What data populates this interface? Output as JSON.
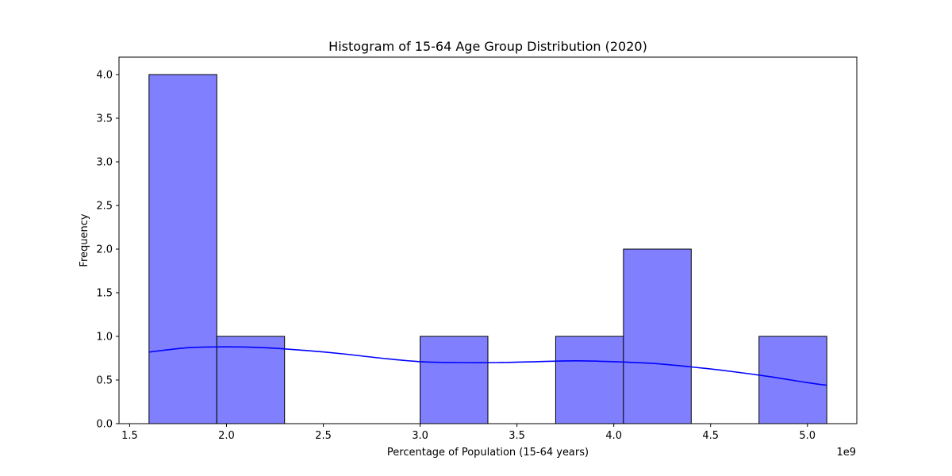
{
  "chart_data": {
    "type": "bar",
    "subtype": "histogram",
    "title": "Histogram of 15-64 Age Group Distribution (2020)",
    "xlabel": "Percentage of Population (15-64 years)",
    "ylabel": "Frequency",
    "x_offset_text": "1e9",
    "x_scale_factor": 1000000000,
    "xlim": [
      1.445,
      5.255
    ],
    "ylim": [
      0,
      4.2
    ],
    "x_ticks": [
      1.5,
      2.0,
      2.5,
      3.0,
      3.5,
      4.0,
      4.5,
      5.0
    ],
    "x_tick_labels": [
      "1.5",
      "2.0",
      "2.5",
      "3.0",
      "3.5",
      "4.0",
      "4.5",
      "5.0"
    ],
    "y_ticks": [
      0,
      0.5,
      1.0,
      1.5,
      2.0,
      2.5,
      3.0,
      3.5,
      4.0
    ],
    "y_tick_labels": [
      "0.0",
      "0.5",
      "1.0",
      "1.5",
      "2.0",
      "2.5",
      "3.0",
      "3.5",
      "4.0"
    ],
    "bins": [
      {
        "x0": 1.6,
        "x1": 1.95,
        "count": 4
      },
      {
        "x0": 1.95,
        "x1": 2.3,
        "count": 1
      },
      {
        "x0": 2.3,
        "x1": 2.65,
        "count": 0
      },
      {
        "x0": 2.65,
        "x1": 3.0,
        "count": 0
      },
      {
        "x0": 3.0,
        "x1": 3.35,
        "count": 1
      },
      {
        "x0": 3.35,
        "x1": 3.7,
        "count": 0
      },
      {
        "x0": 3.7,
        "x1": 4.05,
        "count": 1
      },
      {
        "x0": 4.05,
        "x1": 4.4,
        "count": 2
      },
      {
        "x0": 4.4,
        "x1": 4.75,
        "count": 0
      },
      {
        "x0": 4.75,
        "x1": 5.1,
        "count": 1
      }
    ],
    "kde": {
      "x": [
        1.6,
        1.8,
        2.0,
        2.2,
        2.4,
        2.6,
        2.8,
        3.0,
        3.2,
        3.4,
        3.6,
        3.8,
        4.0,
        4.2,
        4.4,
        4.6,
        4.8,
        5.0,
        5.1
      ],
      "y": [
        0.82,
        0.87,
        0.88,
        0.87,
        0.84,
        0.8,
        0.75,
        0.71,
        0.7,
        0.7,
        0.71,
        0.72,
        0.71,
        0.69,
        0.65,
        0.6,
        0.54,
        0.47,
        0.44
      ]
    },
    "grid": false,
    "colors": {
      "bar_fill": "#8080ff",
      "bar_edge": "#000000",
      "kde_line": "#0000ff"
    }
  }
}
